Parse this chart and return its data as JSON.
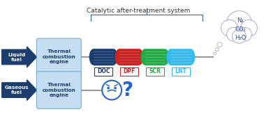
{
  "title": "Catalytic after-treatment system",
  "arrow_color": "#1c3d6e",
  "engine_box_color": "#c5ddf0",
  "engine_box_edge": "#7aaed0",
  "liquid_fuel_text": "Liquid\nfuel",
  "gaseous_fuel_text": "Gaseous\nfuel",
  "engine_text": "Thermal\ncombustion\nengine",
  "doc_color": "#1c3d6e",
  "doc_stripe": "#6080b0",
  "dpf_color": "#cc2222",
  "dpf_stripe": "#e07070",
  "scr_color": "#22aa44",
  "scr_stripe": "#80dd99",
  "lnt_color": "#33bbee",
  "lnt_stripe": "#99ddff",
  "cloud_text": "N₂\nCO₂\nH₂O",
  "cloud_color": "#aaaacc",
  "labels": [
    "DOC",
    "DPF",
    "SCR",
    "LNT"
  ],
  "label_colors": [
    "#1c3d6e",
    "#cc2222",
    "#22aa44",
    "#33bbee"
  ],
  "rod_color": "#999999",
  "bracket_color": "#336699",
  "sad_color": "#2266cc",
  "background_color": "#ffffff"
}
